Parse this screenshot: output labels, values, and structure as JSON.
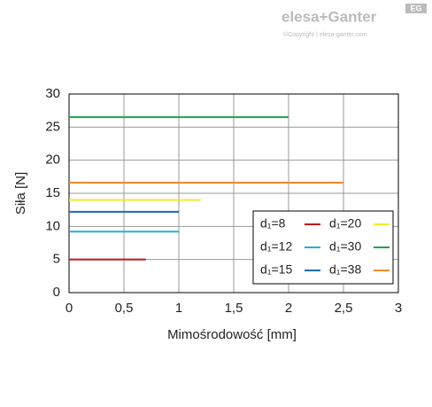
{
  "branding": {
    "logo": "elesa+Ganter",
    "copyright": "©Copyright | elesa-ganter.com",
    "badge": "EG"
  },
  "chart_data": {
    "type": "line",
    "xlabel": "Mimośrodowość [mm]",
    "ylabel": "Siła [N]",
    "xlim": [
      0,
      3
    ],
    "xticks": [
      0,
      {
        "value": 0.5,
        "label": "0,5"
      },
      1,
      {
        "value": 1.5,
        "label": "1,5"
      },
      2,
      {
        "value": 2.5,
        "label": "2,5"
      },
      3
    ],
    "ylim": [
      0,
      30
    ],
    "yticks": [
      0,
      5,
      10,
      15,
      20,
      25,
      30
    ],
    "grid": true,
    "series": [
      {
        "name": "d₁=8",
        "color": "#c0161c",
        "x": [
          0,
          0.7
        ],
        "values": [
          5,
          5
        ]
      },
      {
        "name": "d₁=12",
        "color": "#29abe2",
        "x": [
          0,
          1
        ],
        "values": [
          9.2,
          9.2
        ]
      },
      {
        "name": "d₁=15",
        "color": "#1a6bb5",
        "x": [
          0,
          1
        ],
        "values": [
          12.2,
          12.2
        ]
      },
      {
        "name": "d₁=20",
        "color": "#f2ea2a",
        "x": [
          0,
          1.2
        ],
        "values": [
          14,
          14
        ]
      },
      {
        "name": "d₁=30",
        "color": "#1ea24a",
        "x": [
          0,
          2
        ],
        "values": [
          26.5,
          26.5
        ]
      },
      {
        "name": "d₁=38",
        "color": "#f08a2e",
        "x": [
          0,
          2.5
        ],
        "values": [
          16.6,
          16.6
        ]
      }
    ]
  }
}
